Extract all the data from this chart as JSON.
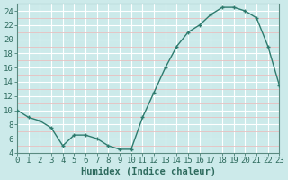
{
  "x": [
    0,
    1,
    2,
    3,
    4,
    5,
    6,
    7,
    8,
    9,
    10,
    11,
    12,
    13,
    14,
    15,
    16,
    17,
    18,
    19,
    20,
    21,
    22,
    23
  ],
  "y": [
    10,
    9,
    8.5,
    7.5,
    5,
    6.5,
    6.5,
    6,
    5,
    4.5,
    4.5,
    9,
    12.5,
    16,
    19,
    21,
    22,
    23.5,
    24.5,
    24.5,
    24,
    23,
    19,
    13.5
  ],
  "xlabel": "Humidex (Indice chaleur)",
  "xlim": [
    0,
    23
  ],
  "ylim": [
    4,
    25
  ],
  "yticks": [
    4,
    6,
    8,
    10,
    12,
    14,
    16,
    18,
    20,
    22,
    24
  ],
  "xticks": [
    0,
    1,
    2,
    3,
    4,
    5,
    6,
    7,
    8,
    9,
    10,
    11,
    12,
    13,
    14,
    15,
    16,
    17,
    18,
    19,
    20,
    21,
    22,
    23
  ],
  "line_color": "#2e7b6e",
  "bg_color": "#cceaea",
  "grid_major_color": "#ffffff",
  "grid_minor_color": "#e8c0c0",
  "text_color": "#2e6b5e",
  "axis_color": "#5a8a80",
  "tick_font_size": 6.5,
  "xlabel_font_size": 7.5
}
